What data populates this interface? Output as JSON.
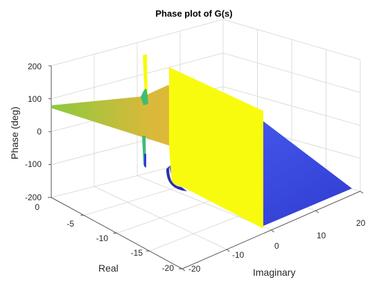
{
  "chart_data": {
    "type": "surface",
    "title": "Phase plot of G(s)",
    "xlabel": "Real",
    "ylabel": "Imaginary",
    "zlabel": "Phase (deg)",
    "xlim": [
      -20,
      0
    ],
    "ylim": [
      -20,
      20
    ],
    "zlim": [
      -200,
      200
    ],
    "xticks": [
      0,
      -5,
      -10,
      -15,
      -20
    ],
    "yticks": [
      -20,
      -10,
      0,
      10,
      20
    ],
    "zticks": [
      200,
      100,
      0,
      -100,
      -200
    ],
    "grid": true,
    "colormap": "parula",
    "colors": {
      "high": "#f9fb0e",
      "mid": "#fbb435",
      "low_mid": "#3fbc74",
      "low": "#2d38d9"
    },
    "features": {
      "discontinuity": "phase jumps from about +180 to -180 deg along Imaginary = 0 for Real below -1",
      "peaks_near_real": -1,
      "left_plane_phase_deg": 75,
      "right_plane_phase_deg": -120
    }
  }
}
